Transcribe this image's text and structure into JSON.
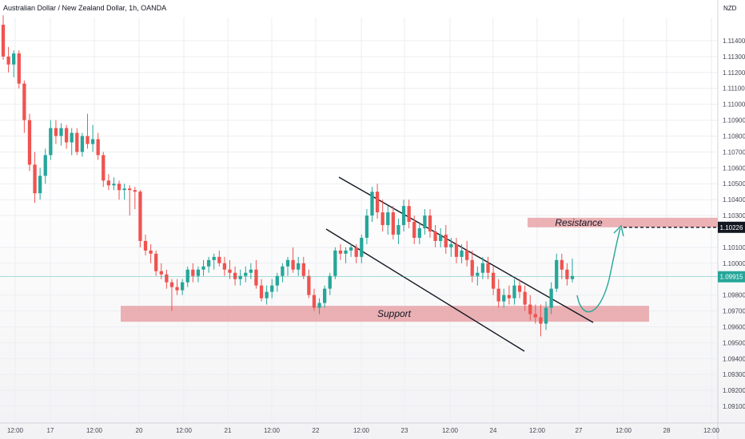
{
  "header": {
    "title": "Australian Dollar / New Zealand Dollar, 1h, OANDA",
    "currency": "NZD"
  },
  "chart_data": {
    "type": "candlestick",
    "title": "Australian Dollar / New Zealand Dollar, 1h, OANDA",
    "ylabel": "NZD",
    "ylim": [
      1.0904,
      1.116
    ],
    "grid": true,
    "y_ticks": [
      "1.11400",
      "1.11300",
      "1.11200",
      "1.11100",
      "1.11000",
      "1.10900",
      "1.10800",
      "1.10700",
      "1.10600",
      "1.10500",
      "1.10400",
      "1.10300",
      "1.10100",
      "1.10000",
      "1.09800",
      "1.09700",
      "1.09600",
      "1.09500",
      "1.09400",
      "1.09300",
      "1.09200",
      "1.09100"
    ],
    "x_ticks": [
      "12:00",
      "17",
      "12:00",
      "20",
      "12:00",
      "21",
      "12:00",
      "22",
      "12:00",
      "23",
      "12:00",
      "24",
      "12:00",
      "27",
      "12:00",
      "28",
      "12:00"
    ],
    "current_price": "1.09915",
    "target_price": "1.10226",
    "colors": {
      "up": "#26a69a",
      "down": "#ef5350",
      "zone": "#e8a3a8",
      "arrow": "#26a69a",
      "current": "#26a69a",
      "target": "#131722"
    },
    "zones": [
      {
        "label": "Resistance",
        "from": 1.10226,
        "to": 1.10286
      },
      {
        "label": "Support",
        "from": 1.09632,
        "to": 1.09732
      }
    ],
    "candles": [
      [
        1.115,
        1.1156,
        1.1128,
        1.113
      ],
      [
        1.113,
        1.1136,
        1.112,
        1.1125
      ],
      [
        1.1125,
        1.1134,
        1.1117,
        1.1132
      ],
      [
        1.1132,
        1.1134,
        1.111,
        1.1113
      ],
      [
        1.1113,
        1.1115,
        1.1082,
        1.109
      ],
      [
        1.109,
        1.1094,
        1.1058,
        1.1062
      ],
      [
        1.1062,
        1.107,
        1.1038,
        1.1044
      ],
      [
        1.1044,
        1.106,
        1.104,
        1.1055
      ],
      [
        1.1055,
        1.1072,
        1.105,
        1.1068
      ],
      [
        1.1068,
        1.109,
        1.1065,
        1.1085
      ],
      [
        1.1085,
        1.109,
        1.1075,
        1.108
      ],
      [
        1.108,
        1.1088,
        1.1074,
        1.1085
      ],
      [
        1.1085,
        1.1087,
        1.1072,
        1.1076
      ],
      [
        1.1076,
        1.1085,
        1.1068,
        1.1082
      ],
      [
        1.1082,
        1.1085,
        1.1068,
        1.107
      ],
      [
        1.107,
        1.1082,
        1.1067,
        1.108
      ],
      [
        1.108,
        1.1094,
        1.1072,
        1.1075
      ],
      [
        1.1075,
        1.1087,
        1.107,
        1.1078
      ],
      [
        1.1078,
        1.1082,
        1.1065,
        1.1068
      ],
      [
        1.1068,
        1.107,
        1.1048,
        1.1052
      ],
      [
        1.1052,
        1.1056,
        1.1046,
        1.1049
      ],
      [
        1.1049,
        1.1054,
        1.1046,
        1.105
      ],
      [
        1.105,
        1.1052,
        1.104,
        1.1046
      ],
      [
        1.1046,
        1.105,
        1.104,
        1.1047
      ],
      [
        1.1047,
        1.1049,
        1.103,
        1.1046
      ],
      [
        1.1046,
        1.1048,
        1.1034,
        1.1045
      ],
      [
        1.1045,
        1.1046,
        1.101,
        1.1014
      ],
      [
        1.1014,
        1.1018,
        1.1005,
        1.1008
      ],
      [
        1.1008,
        1.1012,
        1.1,
        1.1006
      ],
      [
        1.1006,
        1.1008,
        1.0992,
        1.0995
      ],
      [
        1.0995,
        1.1,
        1.099,
        1.0993
      ],
      [
        1.0993,
        1.0996,
        1.0984,
        1.0988
      ],
      [
        1.0988,
        1.099,
        1.097,
        1.0985
      ],
      [
        1.0985,
        1.099,
        1.098,
        1.0983
      ],
      [
        1.0983,
        1.099,
        1.098,
        1.0988
      ],
      [
        1.0988,
        1.0998,
        1.0985,
        1.0996
      ],
      [
        1.0996,
        1.1,
        1.0988,
        1.0992
      ],
      [
        1.0992,
        1.0998,
        1.0988,
        1.0996
      ],
      [
        1.0996,
        1.1002,
        1.0992,
        1.0998
      ],
      [
        1.0998,
        1.1004,
        1.0994,
        1.1002
      ],
      [
        1.1002,
        1.1006,
        1.0996,
        1.1004
      ],
      [
        1.1004,
        1.1008,
        1.0998,
        1.1
      ],
      [
        1.1,
        1.1004,
        1.0992,
        1.0996
      ],
      [
        1.0996,
        1.1002,
        1.099,
        1.0994
      ],
      [
        1.0994,
        1.0998,
        1.0986,
        1.099
      ],
      [
        1.099,
        1.0996,
        1.0986,
        1.0992
      ],
      [
        1.0992,
        1.0998,
        1.0988,
        1.0994
      ],
      [
        1.0994,
        1.1,
        1.099,
        1.0996
      ],
      [
        1.0996,
        1.1002,
        1.0984,
        1.0986
      ],
      [
        1.0986,
        1.099,
        1.0976,
        1.0978
      ],
      [
        1.0978,
        1.0986,
        1.0974,
        1.0982
      ],
      [
        1.0982,
        1.099,
        1.0978,
        1.0986
      ],
      [
        1.0986,
        1.0994,
        1.0982,
        1.0992
      ],
      [
        1.0992,
        1.1,
        1.0988,
        1.0998
      ],
      [
        1.0998,
        1.1004,
        1.0992,
        1.1002
      ],
      [
        1.1002,
        1.101,
        1.0994,
        1.0996
      ],
      [
        1.0996,
        1.1004,
        1.0992,
        1.1
      ],
      [
        1.1,
        1.1004,
        1.099,
        1.0992
      ],
      [
        1.0992,
        1.0996,
        1.0978,
        1.098
      ],
      [
        1.098,
        1.0984,
        1.097,
        1.0972
      ],
      [
        1.0972,
        1.0978,
        1.0968,
        1.0975
      ],
      [
        1.0975,
        1.0986,
        1.0972,
        1.0984
      ],
      [
        1.0984,
        1.0994,
        1.098,
        1.0992
      ],
      [
        1.0992,
        1.101,
        1.099,
        1.1008
      ],
      [
        1.1008,
        1.1012,
        1.1002,
        1.1006
      ],
      [
        1.1006,
        1.101,
        1.1,
        1.1008
      ],
      [
        1.1008,
        1.1012,
        1.1004,
        1.101
      ],
      [
        1.101,
        1.1012,
        1.1,
        1.1004
      ],
      [
        1.1004,
        1.1018,
        1.1,
        1.1016
      ],
      [
        1.1016,
        1.1034,
        1.1012,
        1.103
      ],
      [
        1.103,
        1.1048,
        1.1026,
        1.1045
      ],
      [
        1.1045,
        1.105,
        1.1028,
        1.1032
      ],
      [
        1.1032,
        1.104,
        1.102,
        1.1024
      ],
      [
        1.1024,
        1.1036,
        1.1018,
        1.1032
      ],
      [
        1.1032,
        1.1036,
        1.1015,
        1.1018
      ],
      [
        1.1018,
        1.1028,
        1.1012,
        1.1024
      ],
      [
        1.1024,
        1.104,
        1.102,
        1.1036
      ],
      [
        1.1036,
        1.104,
        1.1022,
        1.1026
      ],
      [
        1.1026,
        1.103,
        1.1012,
        1.1016
      ],
      [
        1.1016,
        1.1026,
        1.1012,
        1.1022
      ],
      [
        1.1022,
        1.1034,
        1.1018,
        1.103
      ],
      [
        1.103,
        1.1034,
        1.1016,
        1.102
      ],
      [
        1.102,
        1.1024,
        1.101,
        1.1014
      ],
      [
        1.1014,
        1.1022,
        1.101,
        1.1018
      ],
      [
        1.1018,
        1.1024,
        1.1006,
        1.101
      ],
      [
        1.101,
        1.1016,
        1.1004,
        1.1012
      ],
      [
        1.1012,
        1.1016,
        1.1,
        1.1004
      ],
      [
        1.1004,
        1.1012,
        1.1,
        1.1008
      ],
      [
        1.1008,
        1.1014,
        1.0998,
        1.1002
      ],
      [
        1.1002,
        1.1008,
        1.0988,
        1.0992
      ],
      [
        1.0992,
        1.0998,
        1.0986,
        1.0994
      ],
      [
        1.0994,
        1.1004,
        1.099,
        1.1
      ],
      [
        1.1,
        1.1004,
        1.099,
        1.0994
      ],
      [
        1.0994,
        1.0998,
        1.098,
        1.0984
      ],
      [
        1.0984,
        1.099,
        1.0972,
        1.0976
      ],
      [
        1.0976,
        1.0984,
        1.0972,
        1.098
      ],
      [
        1.098,
        1.0986,
        1.0974,
        1.0978
      ],
      [
        1.0978,
        1.099,
        1.0974,
        1.0986
      ],
      [
        1.0986,
        1.099,
        1.0978,
        1.0982
      ],
      [
        1.0982,
        1.0986,
        1.097,
        1.0974
      ],
      [
        1.0974,
        1.098,
        1.0964,
        1.0968
      ],
      [
        1.0968,
        1.0974,
        1.0962,
        1.0966
      ],
      [
        1.0966,
        1.0974,
        1.0954,
        1.0962
      ],
      [
        1.0962,
        1.0976,
        1.0958,
        1.0972
      ],
      [
        1.0972,
        1.0988,
        1.0968,
        1.0984
      ],
      [
        1.0984,
        1.1006,
        1.0982,
        1.1002
      ],
      [
        1.1002,
        1.1006,
        1.099,
        1.0996
      ],
      [
        1.0996,
        1.1,
        1.0986,
        1.099
      ],
      [
        1.099,
        1.1003,
        1.0988,
        1.0992
      ]
    ]
  },
  "annotations": {
    "resistance": "Resistance",
    "support": "Support"
  }
}
